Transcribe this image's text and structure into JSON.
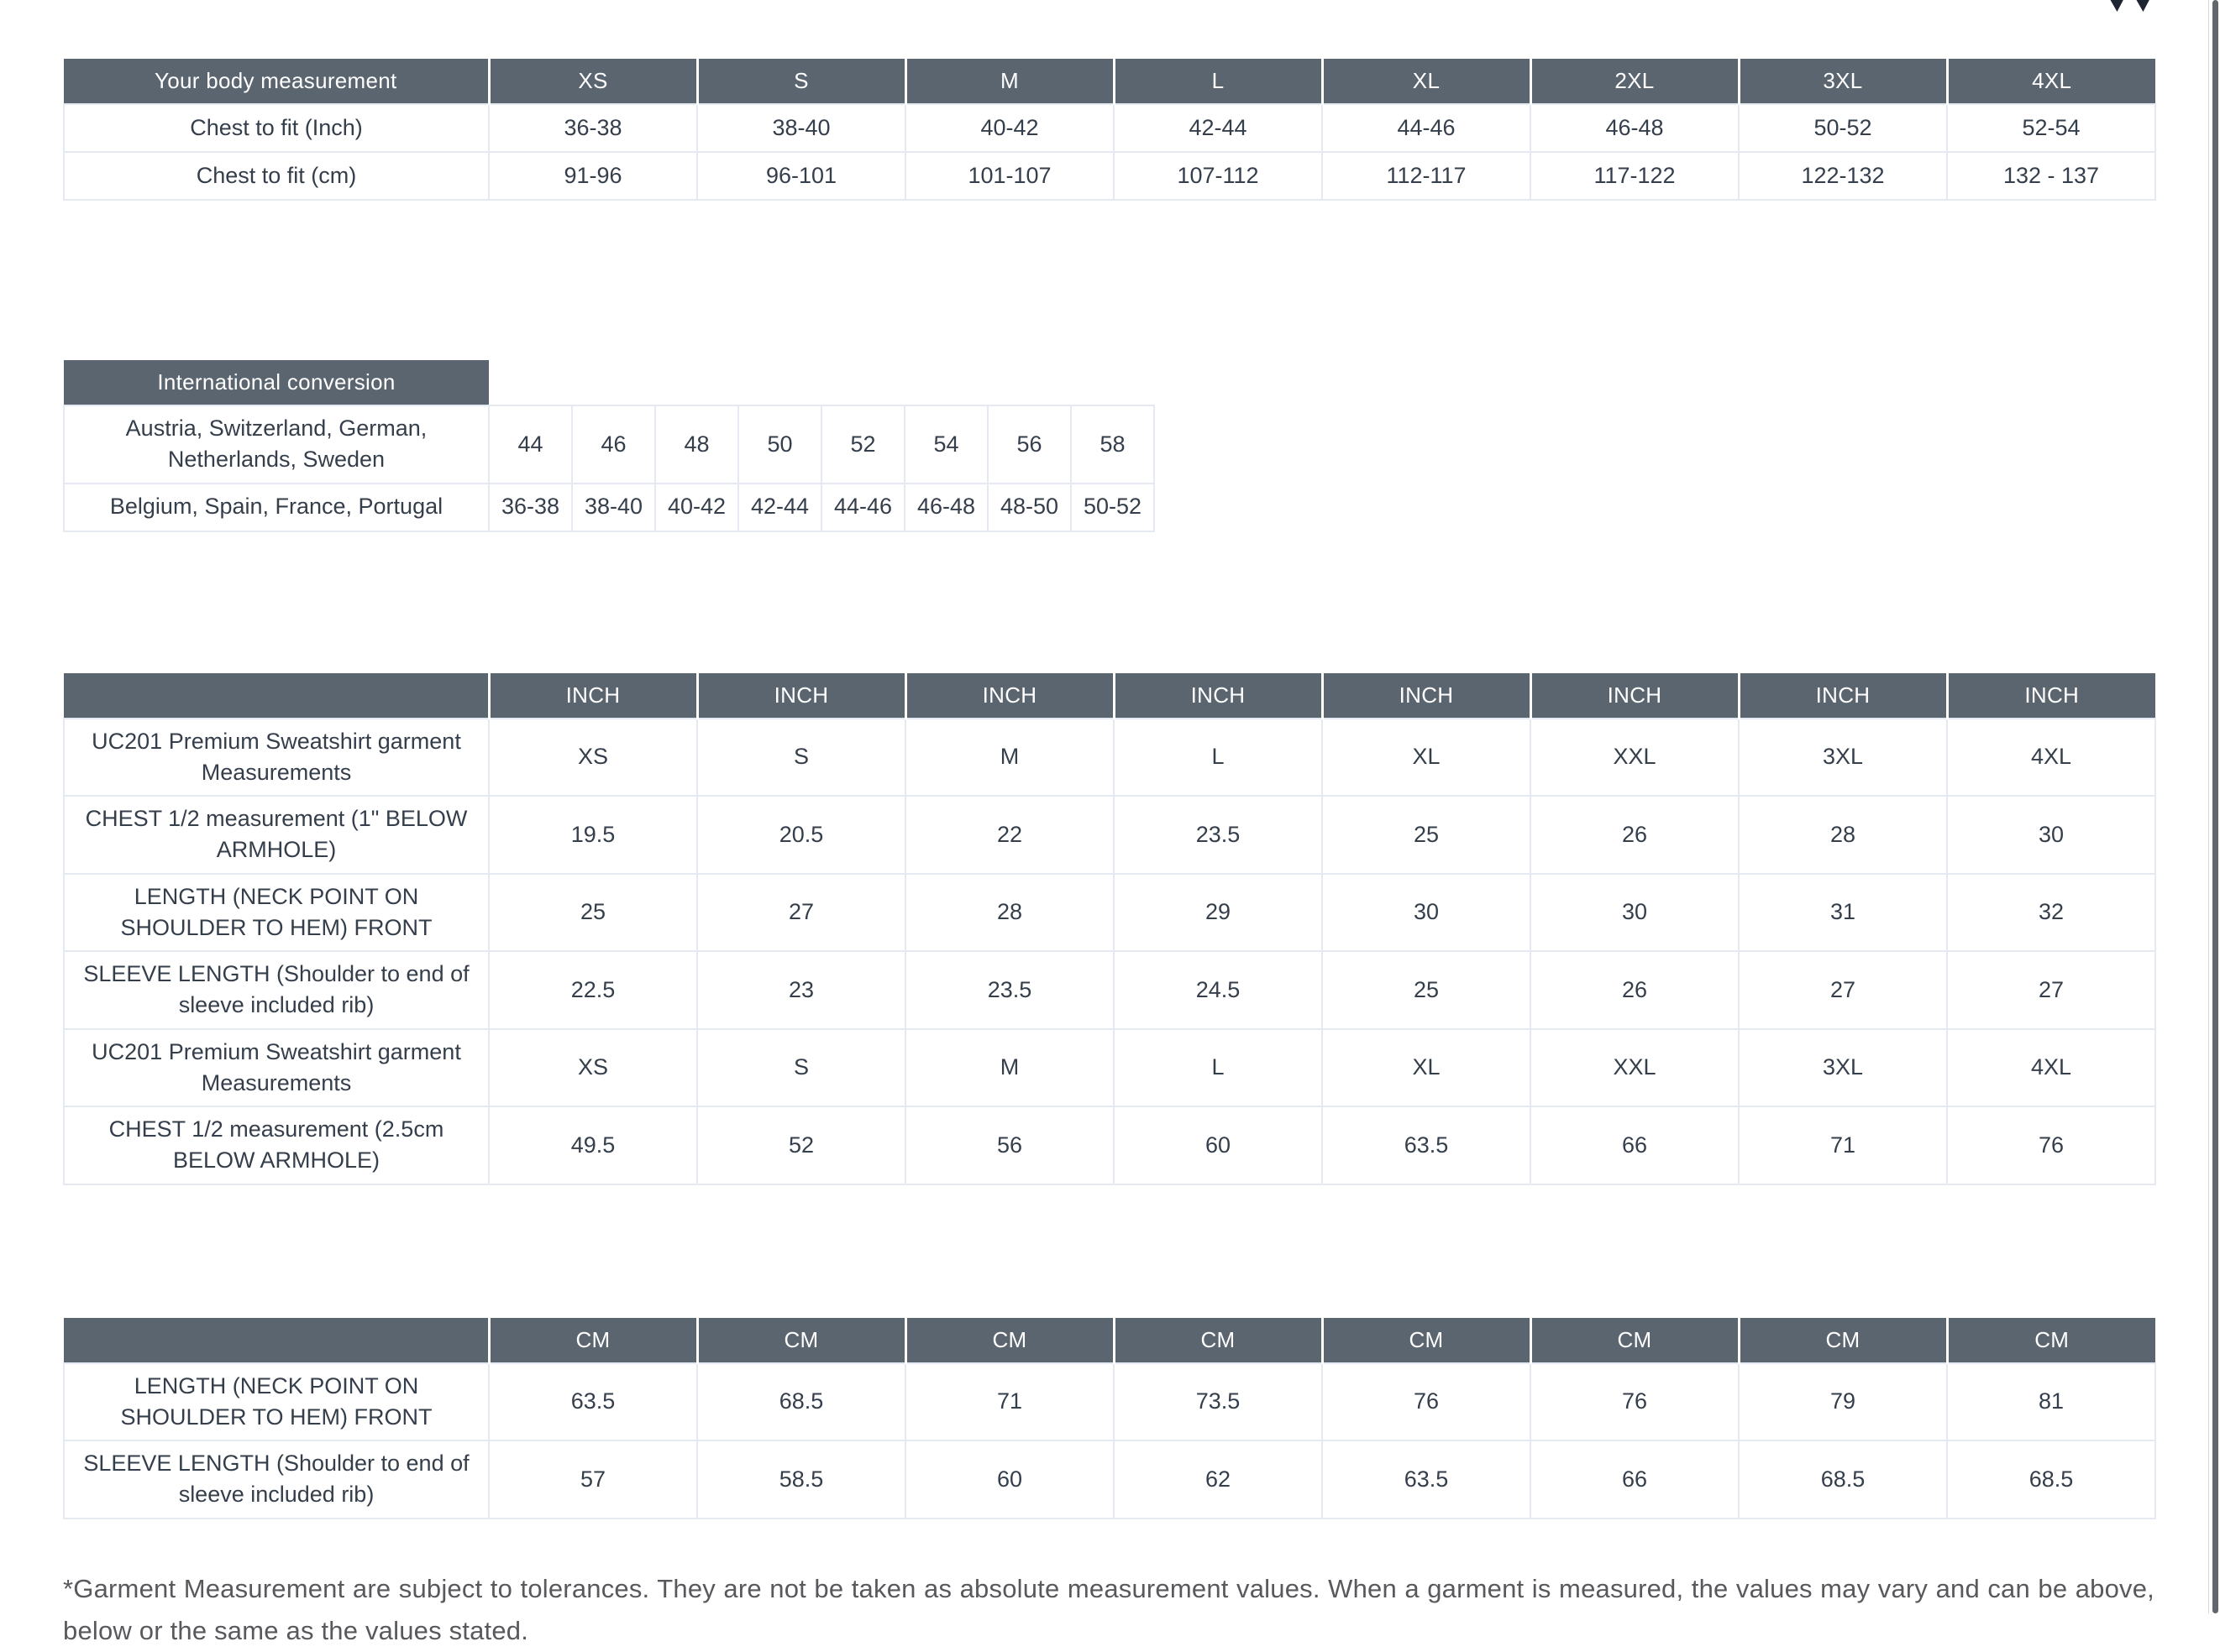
{
  "colors": {
    "header_bg": "#5a6570",
    "header_text": "#ffffff",
    "cell_text": "#353e4b",
    "cell_border": "#e4e9f2",
    "footnote_text": "#58595d",
    "scrollbar_thumb": "#62666c",
    "cropped_glyph": "#1f2530"
  },
  "icons": {
    "top_right_cropped": "double-triangle-down-cropped"
  },
  "tables": {
    "body_measurement": {
      "header": [
        "Your body measurement",
        "XS",
        "S",
        "M",
        "L",
        "XL",
        "2XL",
        "3XL",
        "4XL"
      ],
      "rows": [
        {
          "label": "Chest to fit (Inch)",
          "values": [
            "36-38",
            "38-40",
            "40-42",
            "42-44",
            "44-46",
            "46-48",
            "50-52",
            "52-54"
          ]
        },
        {
          "label": "Chest to fit (cm)",
          "values": [
            "91-96",
            "96-101",
            "101-107",
            "107-112",
            "112-117",
            "117-122",
            "122-132",
            "132 - 137"
          ]
        }
      ]
    },
    "international": {
      "header": "International conversion",
      "rows": [
        {
          "label": "Austria, Switzerland, German, Netherlands, Sweden",
          "values": [
            "44",
            "46",
            "48",
            "50",
            "52",
            "54",
            "56",
            "58"
          ]
        },
        {
          "label": "Belgium, Spain, France, Portugal",
          "values": [
            "36-38",
            "38-40",
            "40-42",
            "42-44",
            "44-46",
            "46-48",
            "48-50",
            "50-52"
          ]
        }
      ]
    },
    "inch": {
      "unit": "INCH",
      "unit_count": 8,
      "rows": [
        {
          "label": "UC201 Premium Sweatshirt garment Measurements",
          "values": [
            "XS",
            "S",
            "M",
            "L",
            "XL",
            "XXL",
            "3XL",
            "4XL"
          ]
        },
        {
          "label": "CHEST 1/2 measurement (1\" BELOW ARMHOLE)",
          "values": [
            "19.5",
            "20.5",
            "22",
            "23.5",
            "25",
            "26",
            "28",
            "30"
          ]
        },
        {
          "label": "LENGTH (NECK POINT ON SHOULDER TO HEM) FRONT",
          "values": [
            "25",
            "27",
            "28",
            "29",
            "30",
            "30",
            "31",
            "32"
          ]
        },
        {
          "label": "SLEEVE LENGTH (Shoulder to end of sleeve included rib)",
          "values": [
            "22.5",
            "23",
            "23.5",
            "24.5",
            "25",
            "26",
            "27",
            "27"
          ]
        },
        {
          "label": "UC201 Premium Sweatshirt garment Measurements",
          "values": [
            "XS",
            "S",
            "M",
            "L",
            "XL",
            "XXL",
            "3XL",
            "4XL"
          ]
        },
        {
          "label": "CHEST 1/2 measurement (2.5cm BELOW ARMHOLE)",
          "values": [
            "49.5",
            "52",
            "56",
            "60",
            "63.5",
            "66",
            "71",
            "76"
          ]
        }
      ]
    },
    "cm": {
      "unit": "CM",
      "unit_count": 8,
      "rows": [
        {
          "label": "LENGTH (NECK POINT ON SHOULDER TO HEM) FRONT",
          "values": [
            "63.5",
            "68.5",
            "71",
            "73.5",
            "76",
            "76",
            "79",
            "81"
          ]
        },
        {
          "label": "SLEEVE LENGTH (Shoulder to end of sleeve included rib)",
          "values": [
            "57",
            "58.5",
            "60",
            "62",
            "63.5",
            "66",
            "68.5",
            "68.5"
          ]
        }
      ]
    }
  },
  "footnote": "*Garment Measurement are subject to tolerances. They are not be taken as absolute measurement values. When a garment is measured, the values may vary and can be above, below or the same as the values stated."
}
